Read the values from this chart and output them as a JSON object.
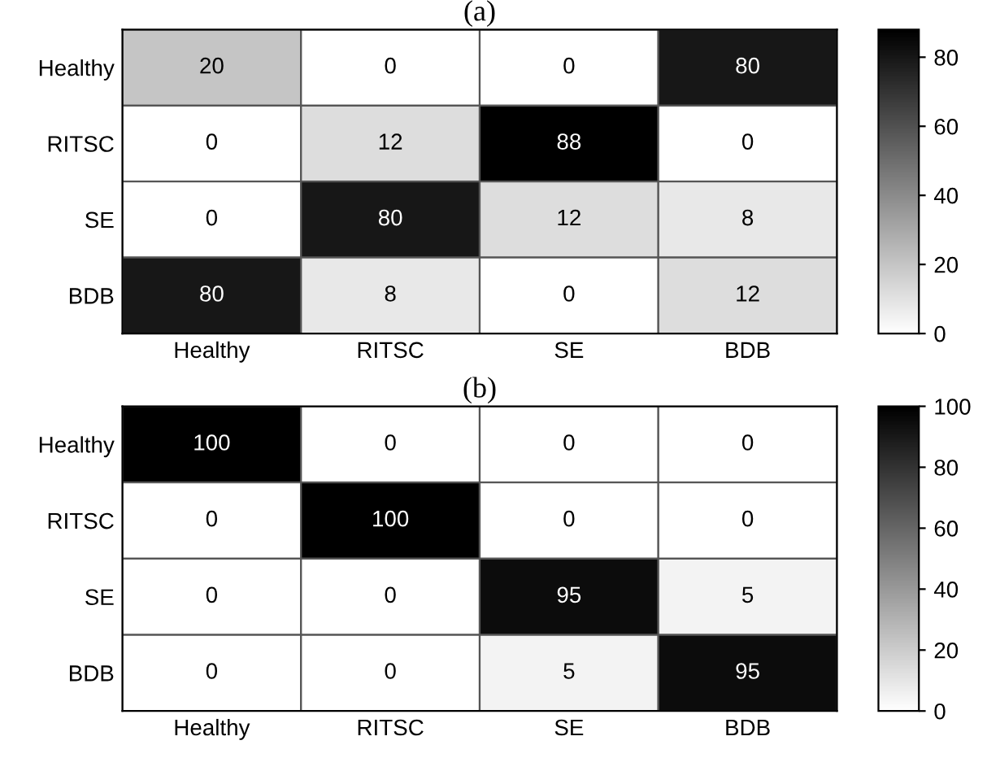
{
  "chart_data": [
    {
      "type": "heatmap",
      "title": "(a)",
      "categories": [
        "Healthy",
        "RITSC",
        "SE",
        "BDB"
      ],
      "y_categories": [
        "Healthy",
        "RITSC",
        "SE",
        "BDB"
      ],
      "cells": [
        [
          20,
          0,
          0,
          80
        ],
        [
          0,
          12,
          88,
          0
        ],
        [
          0,
          80,
          12,
          8
        ],
        [
          80,
          8,
          0,
          12
        ]
      ],
      "clim": [
        0,
        88
      ],
      "cticks": [
        0,
        20,
        40,
        60,
        80
      ],
      "data_labels": true
    },
    {
      "type": "heatmap",
      "title": "(b)",
      "categories": [
        "Healthy",
        "RITSC",
        "SE",
        "BDB"
      ],
      "y_categories": [
        "Healthy",
        "RITSC",
        "SE",
        "BDB"
      ],
      "cells": [
        [
          100,
          0,
          0,
          0
        ],
        [
          0,
          100,
          0,
          0
        ],
        [
          0,
          0,
          95,
          5
        ],
        [
          0,
          0,
          5,
          95
        ]
      ],
      "clim": [
        0,
        100
      ],
      "cticks": [
        0,
        20,
        40,
        60,
        80,
        100
      ],
      "data_labels": true
    }
  ]
}
